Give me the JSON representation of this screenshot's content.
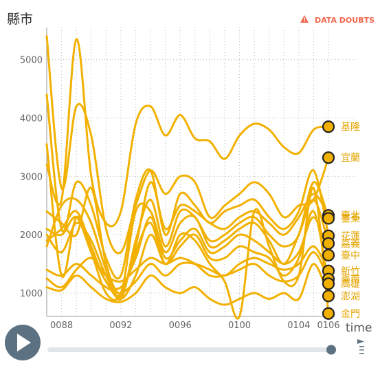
{
  "chart_data": {
    "type": "line",
    "title": "",
    "ylabel": "縣市",
    "xlabel": "time",
    "x": [
      "0087",
      "0088",
      "0089",
      "0090",
      "0091",
      "0092",
      "0093",
      "0094",
      "0095",
      "0096",
      "0097",
      "0098",
      "0099",
      "0100",
      "0101",
      "0102",
      "0103",
      "0104",
      "0105",
      "0106"
    ],
    "x_ticks": [
      "0088",
      "0092",
      "0096",
      "0100",
      "0104",
      "0106"
    ],
    "y_ticks": [
      "1000",
      "2000",
      "3000",
      "4000",
      "5000"
    ],
    "ylim": [
      600,
      5550
    ],
    "grid": true,
    "series": [
      {
        "name": "基隆",
        "values": [
          3200,
          2600,
          5350,
          3000,
          2200,
          2400,
          3900,
          4200,
          3700,
          4050,
          3650,
          3600,
          3300,
          3700,
          3900,
          3800,
          3500,
          3400,
          3800,
          3850
        ]
      },
      {
        "name": "宜蘭",
        "values": [
          5400,
          2800,
          4200,
          3700,
          2100,
          1700,
          2500,
          3100,
          2700,
          3000,
          2900,
          2300,
          2500,
          2700,
          2900,
          2700,
          2300,
          2500,
          2600,
          3320
        ]
      },
      {
        "name": "臺北",
        "values": [
          2400,
          2200,
          2000,
          2800,
          1500,
          1000,
          1800,
          2900,
          2100,
          2500,
          2400,
          2200,
          2100,
          2300,
          2400,
          2200,
          2000,
          2300,
          2700,
          2330
        ]
      },
      {
        "name": "臺東",
        "values": [
          1800,
          2500,
          2600,
          2200,
          1400,
          900,
          1900,
          2600,
          1800,
          2400,
          2300,
          1900,
          2000,
          2200,
          2300,
          2000,
          1800,
          2000,
          2900,
          2280
        ]
      },
      {
        "name": "花蓮",
        "values": [
          4400,
          2100,
          2900,
          2500,
          1600,
          1300,
          2600,
          3100,
          2000,
          2700,
          2500,
          2200,
          2400,
          2500,
          2600,
          2300,
          2100,
          2400,
          3100,
          1980
        ]
      },
      {
        "name": "嘉義",
        "values": [
          2000,
          1700,
          2200,
          1900,
          1300,
          1000,
          2400,
          2400,
          1700,
          2200,
          2300,
          1800,
          1900,
          2100,
          2200,
          1900,
          1500,
          2000,
          2600,
          1850
        ]
      },
      {
        "name": "臺中",
        "values": [
          1900,
          2100,
          2400,
          1800,
          1200,
          1100,
          1600,
          2300,
          1600,
          1900,
          2100,
          1700,
          1800,
          2000,
          1900,
          1700,
          1500,
          1700,
          2300,
          1650
        ]
      },
      {
        "name": "新竹",
        "values": [
          1400,
          1300,
          1500,
          1300,
          1100,
          1000,
          1200,
          1500,
          1300,
          1500,
          1500,
          1400,
          1300,
          1500,
          1600,
          1500,
          1400,
          1500,
          1800,
          1380
        ]
      },
      {
        "name": "臺南",
        "values": [
          1250,
          1100,
          1400,
          1600,
          1300,
          1200,
          1400,
          1600,
          1500,
          1600,
          1500,
          1300,
          1300,
          1400,
          1500,
          1300,
          1200,
          1300,
          1700,
          1240
        ]
      },
      {
        "name": "高雄",
        "values": [
          2100,
          2000,
          2300,
          1700,
          1200,
          900,
          1300,
          2000,
          1500,
          1800,
          2000,
          1600,
          1600,
          1800,
          1700,
          1600,
          1300,
          1600,
          2400,
          1160
        ]
      },
      {
        "name": "澎湖",
        "values": [
          1100,
          1050,
          1300,
          1100,
          900,
          850,
          1000,
          1300,
          1100,
          1000,
          1100,
          900,
          800,
          900,
          1000,
          900,
          1000,
          900,
          1500,
          950
        ]
      },
      {
        "name": "金門",
        "values": [
          3550,
          1300,
          2300,
          1700,
          1000,
          950,
          1700,
          2200,
          1500,
          2000,
          1900,
          1500,
          1200,
          600,
          2400,
          1800,
          1200,
          1300,
          2800,
          650
        ]
      }
    ],
    "warning": "DATA DOUBTS",
    "colors": {
      "line": "#f2b100",
      "label": "#e5a500",
      "warning": "#f0674f",
      "play": "#5c7282"
    }
  }
}
